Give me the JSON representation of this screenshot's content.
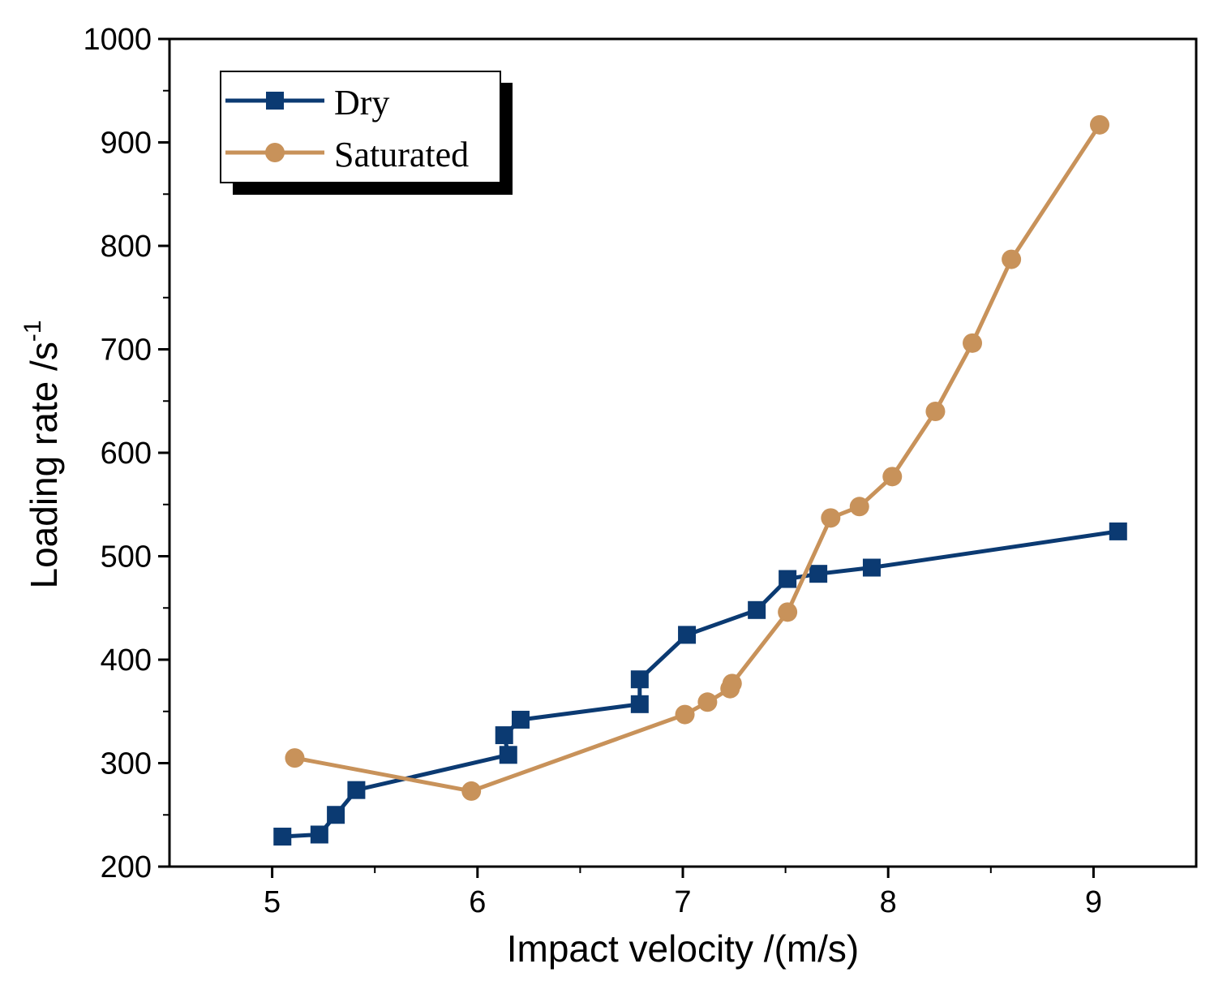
{
  "chart_data": {
    "type": "line",
    "title": "",
    "xlabel": "Impact velocity /(m/s)",
    "ylabel_main": "Loading rate /s",
    "ylabel_sup": "-1",
    "xlim": [
      4.5,
      9.5
    ],
    "ylim": [
      200,
      1000
    ],
    "xticks": [
      5,
      6,
      7,
      8,
      9
    ],
    "xtick_labels": [
      "5",
      "6",
      "7",
      "8",
      "9"
    ],
    "yticks": [
      200,
      300,
      400,
      500,
      600,
      700,
      800,
      900,
      1000
    ],
    "ytick_labels": [
      "200",
      "300",
      "400",
      "500",
      "600",
      "700",
      "800",
      "900",
      "1000"
    ],
    "grid": false,
    "legend_position": "top-left",
    "series": [
      {
        "name": "Dry",
        "color": "#0b3a72",
        "marker": "square",
        "x": [
          5.05,
          5.23,
          5.31,
          5.41,
          6.15,
          6.13,
          6.21,
          6.79,
          6.79,
          7.02,
          7.36,
          7.51,
          7.66,
          7.92,
          9.12
        ],
        "y": [
          229,
          231,
          250,
          274,
          308,
          327,
          342,
          357,
          381,
          424,
          448,
          478,
          483,
          489,
          524
        ]
      },
      {
        "name": "Saturated",
        "color": "#c8925a",
        "marker": "circle",
        "x": [
          5.11,
          5.97,
          7.01,
          7.12,
          7.23,
          7.24,
          7.51,
          7.72,
          7.86,
          8.02,
          8.23,
          8.41,
          8.6,
          9.03
        ],
        "y": [
          305,
          273,
          347,
          359,
          372,
          377,
          446,
          537,
          548,
          577,
          640,
          706,
          787,
          917
        ]
      }
    ]
  }
}
